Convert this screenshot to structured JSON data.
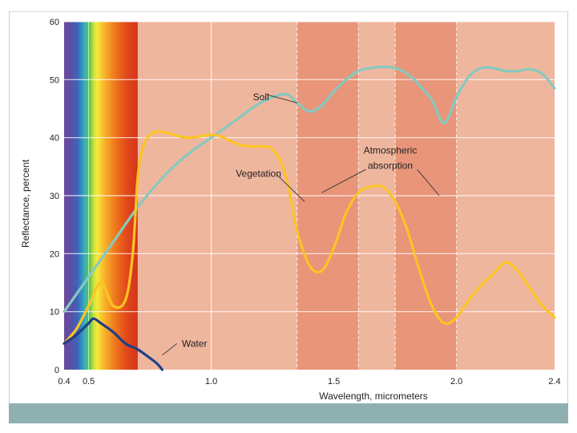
{
  "chart_data": {
    "type": "line",
    "title": "",
    "xlabel": "Wavelength, micrometers",
    "ylabel": "Reflectance, percent",
    "xlim": [
      0.4,
      2.4
    ],
    "ylim": [
      0,
      60
    ],
    "x_ticks": [
      {
        "value": 0.4,
        "label": "0.4"
      },
      {
        "value": 0.5,
        "label": "0.5"
      },
      {
        "value": 1.0,
        "label": "1.0"
      },
      {
        "value": 1.5,
        "label": "1.5"
      },
      {
        "value": 2.0,
        "label": "2.0"
      },
      {
        "value": 2.4,
        "label": "2.4"
      }
    ],
    "y_ticks": [
      {
        "value": 0,
        "label": "0"
      },
      {
        "value": 10,
        "label": "10"
      },
      {
        "value": 20,
        "label": "20"
      },
      {
        "value": 30,
        "label": "30"
      },
      {
        "value": 40,
        "label": "40"
      },
      {
        "value": 50,
        "label": "50"
      },
      {
        "value": 60,
        "label": "60"
      }
    ],
    "grid": true,
    "visible_spectrum": {
      "start": 0.4,
      "end": 0.7
    },
    "absorption_bands": [
      {
        "start": 1.35,
        "end": 1.6
      },
      {
        "start": 1.75,
        "end": 2.0
      }
    ],
    "dashed_lines": [
      1.35,
      1.6,
      1.75,
      2.0
    ],
    "colors": {
      "background": "#efb69e",
      "band": "#e8957a",
      "grid": "#ffffff",
      "soil": "#86c9bf",
      "vegetation": "#fbc424",
      "water": "#1f3f8a"
    },
    "series": [
      {
        "name": "Soil",
        "color_key": "soil",
        "x": [
          0.4,
          0.5,
          0.6,
          0.7,
          0.8,
          0.9,
          1.0,
          1.1,
          1.2,
          1.3,
          1.35,
          1.4,
          1.45,
          1.5,
          1.55,
          1.6,
          1.65,
          1.7,
          1.75,
          1.8,
          1.85,
          1.9,
          1.95,
          2.0,
          2.05,
          2.1,
          2.15,
          2.2,
          2.25,
          2.3,
          2.35,
          2.4
        ],
        "y": [
          10,
          16,
          22,
          28,
          33,
          37,
          40,
          43,
          46,
          47.5,
          46,
          44.5,
          45.5,
          48,
          50,
          51.5,
          52,
          52.2,
          52,
          51,
          49,
          46.5,
          42.5,
          47,
          50.5,
          52,
          52,
          51.5,
          51.5,
          51.8,
          51,
          48.5
        ]
      },
      {
        "name": "Vegetation",
        "color_key": "vegetation",
        "x": [
          0.4,
          0.45,
          0.5,
          0.55,
          0.6,
          0.65,
          0.68,
          0.7,
          0.72,
          0.75,
          0.8,
          0.9,
          1.0,
          1.05,
          1.1,
          1.15,
          1.2,
          1.25,
          1.3,
          1.35,
          1.4,
          1.45,
          1.5,
          1.55,
          1.6,
          1.65,
          1.7,
          1.75,
          1.8,
          1.85,
          1.9,
          1.95,
          2.0,
          2.05,
          2.1,
          2.15,
          2.2,
          2.25,
          2.3,
          2.35,
          2.4
        ],
        "y": [
          4.5,
          7,
          11,
          15,
          11,
          12,
          20,
          33,
          38,
          40.5,
          41,
          40,
          40.5,
          40,
          39,
          38.5,
          38.5,
          38,
          34,
          24,
          18,
          17,
          21,
          27,
          30.5,
          31.5,
          31.5,
          29,
          24,
          17,
          11,
          8,
          9,
          12,
          14.5,
          16.5,
          18.5,
          17,
          14,
          11,
          9
        ]
      },
      {
        "name": "Water",
        "color_key": "water",
        "x": [
          0.4,
          0.45,
          0.5,
          0.52,
          0.55,
          0.6,
          0.65,
          0.7,
          0.75,
          0.78,
          0.8
        ],
        "y": [
          4.5,
          6,
          8,
          8.8,
          8,
          6.5,
          4.5,
          3.5,
          2,
          1,
          0
        ]
      }
    ],
    "annotations": [
      {
        "text": "Soil",
        "at": [
          1.17,
          47
        ],
        "pointer": [
          [
            1.22,
            47.5
          ],
          [
            1.35,
            46
          ]
        ]
      },
      {
        "text": "Vegetation",
        "at": [
          1.1,
          33.8
        ],
        "pointer": [
          [
            1.27,
            33.5
          ],
          [
            1.38,
            29
          ]
        ]
      },
      {
        "text": "Water",
        "at": [
          0.88,
          4.5
        ],
        "pointer": [
          [
            0.86,
            4.5
          ],
          [
            0.8,
            2.5
          ]
        ]
      },
      {
        "text": "Atmospheric",
        "at": [
          1.73,
          37.8
        ]
      },
      {
        "text": "absorption",
        "at": [
          1.73,
          35.2
        ],
        "pointers": [
          [
            [
              1.63,
              34.5
            ],
            [
              1.45,
              30.5
            ]
          ],
          [
            [
              1.84,
              34.5
            ],
            [
              1.93,
              30
            ]
          ]
        ]
      }
    ]
  }
}
